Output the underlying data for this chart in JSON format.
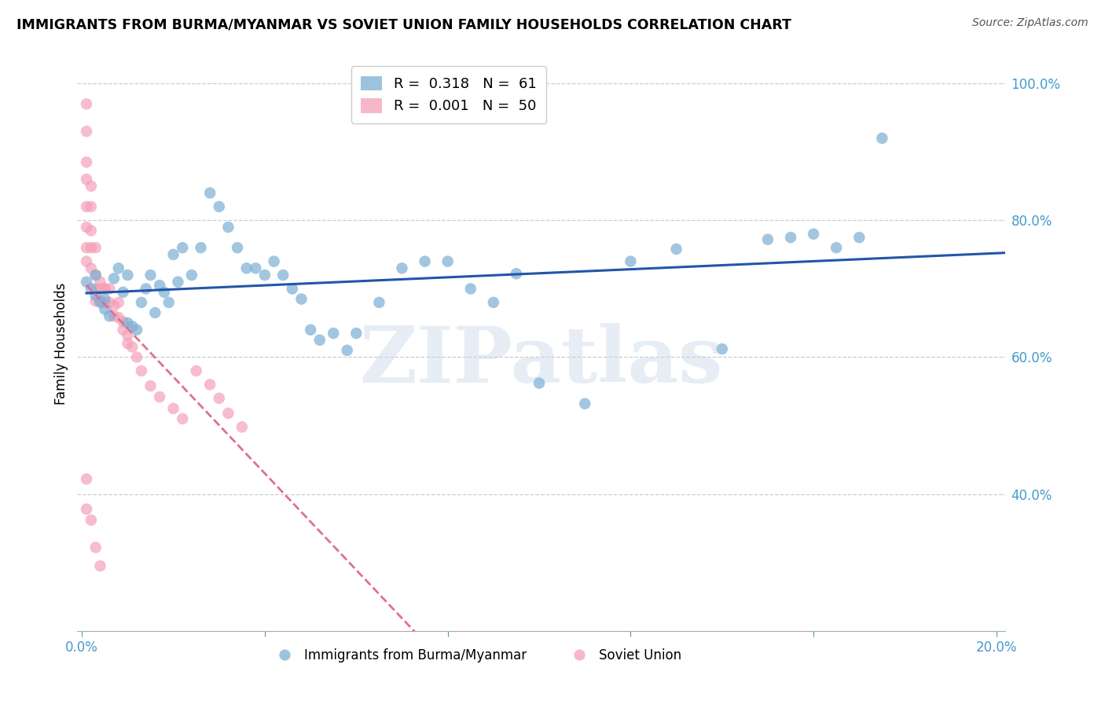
{
  "title": "IMMIGRANTS FROM BURMA/MYANMAR VS SOVIET UNION FAMILY HOUSEHOLDS CORRELATION CHART",
  "source": "Source: ZipAtlas.com",
  "ylabel": "Family Households",
  "legend_blue_r": "0.318",
  "legend_blue_n": "61",
  "legend_pink_r": "0.001",
  "legend_pink_n": "50",
  "xlim": [
    -0.001,
    0.202
  ],
  "ylim": [
    0.2,
    1.04
  ],
  "xtick_pos": [
    0.0,
    0.04,
    0.08,
    0.12,
    0.16,
    0.2
  ],
  "xtick_labels": [
    "0.0%",
    "",
    "",
    "",
    "",
    "20.0%"
  ],
  "ytick_right": [
    0.4,
    0.6,
    0.8,
    1.0
  ],
  "ytick_right_labels": [
    "40.0%",
    "60.0%",
    "80.0%",
    "100.0%"
  ],
  "grid_color": "#cccccc",
  "bg_color": "#ffffff",
  "blue_color": "#7bafd4",
  "pink_color": "#f4a0b8",
  "blue_line_color": "#2255aa",
  "pink_line_color": "#e07090",
  "axis_label_color": "#4499cc",
  "watermark_text": "ZIPatlas",
  "watermark_color": "#c8d8e8",
  "watermark_alpha": 0.45,
  "blue_x": [
    0.001,
    0.002,
    0.003,
    0.003,
    0.004,
    0.005,
    0.005,
    0.006,
    0.007,
    0.008,
    0.009,
    0.01,
    0.01,
    0.011,
    0.012,
    0.013,
    0.014,
    0.015,
    0.016,
    0.017,
    0.018,
    0.019,
    0.02,
    0.021,
    0.022,
    0.024,
    0.026,
    0.028,
    0.03,
    0.032,
    0.034,
    0.036,
    0.038,
    0.04,
    0.042,
    0.044,
    0.046,
    0.048,
    0.05,
    0.052,
    0.055,
    0.058,
    0.06,
    0.065,
    0.07,
    0.075,
    0.08,
    0.085,
    0.09,
    0.095,
    0.1,
    0.11,
    0.12,
    0.13,
    0.14,
    0.15,
    0.155,
    0.16,
    0.165,
    0.17,
    0.175
  ],
  "blue_y": [
    0.71,
    0.7,
    0.69,
    0.72,
    0.68,
    0.685,
    0.67,
    0.66,
    0.715,
    0.73,
    0.695,
    0.65,
    0.72,
    0.645,
    0.64,
    0.68,
    0.7,
    0.72,
    0.665,
    0.705,
    0.695,
    0.68,
    0.75,
    0.71,
    0.76,
    0.72,
    0.76,
    0.84,
    0.82,
    0.79,
    0.76,
    0.73,
    0.73,
    0.72,
    0.74,
    0.72,
    0.7,
    0.685,
    0.64,
    0.625,
    0.635,
    0.61,
    0.635,
    0.68,
    0.73,
    0.74,
    0.74,
    0.7,
    0.68,
    0.722,
    0.562,
    0.532,
    0.74,
    0.758,
    0.612,
    0.772,
    0.775,
    0.78,
    0.76,
    0.775,
    0.92
  ],
  "pink_x": [
    0.001,
    0.001,
    0.001,
    0.001,
    0.001,
    0.001,
    0.001,
    0.001,
    0.002,
    0.002,
    0.002,
    0.002,
    0.002,
    0.003,
    0.003,
    0.003,
    0.003,
    0.004,
    0.004,
    0.004,
    0.005,
    0.005,
    0.006,
    0.006,
    0.007,
    0.007,
    0.008,
    0.008,
    0.009,
    0.009,
    0.01,
    0.01,
    0.011,
    0.012,
    0.013,
    0.015,
    0.017,
    0.02,
    0.022,
    0.025,
    0.028,
    0.03,
    0.032,
    0.035,
    0.001,
    0.001,
    0.002,
    0.003,
    0.004,
    0.005
  ],
  "pink_y": [
    0.97,
    0.93,
    0.885,
    0.86,
    0.82,
    0.79,
    0.76,
    0.74,
    0.85,
    0.82,
    0.785,
    0.76,
    0.73,
    0.7,
    0.682,
    0.76,
    0.72,
    0.71,
    0.7,
    0.682,
    0.7,
    0.68,
    0.7,
    0.68,
    0.675,
    0.66,
    0.68,
    0.658,
    0.652,
    0.64,
    0.632,
    0.62,
    0.615,
    0.6,
    0.58,
    0.558,
    0.542,
    0.525,
    0.51,
    0.58,
    0.56,
    0.54,
    0.518,
    0.498,
    0.378,
    0.422,
    0.362,
    0.322,
    0.295,
    0.7
  ]
}
